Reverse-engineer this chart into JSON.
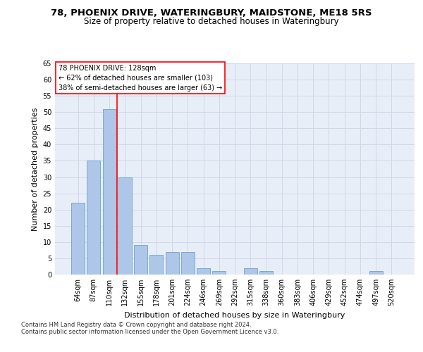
{
  "title1": "78, PHOENIX DRIVE, WATERINGBURY, MAIDSTONE, ME18 5RS",
  "title2": "Size of property relative to detached houses in Wateringbury",
  "xlabel": "Distribution of detached houses by size in Wateringbury",
  "ylabel": "Number of detached properties",
  "categories": [
    "64sqm",
    "87sqm",
    "110sqm",
    "132sqm",
    "155sqm",
    "178sqm",
    "201sqm",
    "224sqm",
    "246sqm",
    "269sqm",
    "292sqm",
    "315sqm",
    "338sqm",
    "360sqm",
    "383sqm",
    "406sqm",
    "429sqm",
    "452sqm",
    "474sqm",
    "497sqm",
    "520sqm"
  ],
  "values": [
    22,
    35,
    51,
    30,
    9,
    6,
    7,
    7,
    2,
    1,
    0,
    2,
    1,
    0,
    0,
    0,
    0,
    0,
    0,
    1,
    0
  ],
  "bar_color": "#aec6e8",
  "bar_edge_color": "#5a96c8",
  "annotation_text": "78 PHOENIX DRIVE: 128sqm\n← 62% of detached houses are smaller (103)\n38% of semi-detached houses are larger (63) →",
  "annotation_box_color": "white",
  "annotation_box_edge_color": "red",
  "vline_color": "red",
  "vline_x_index": 2.5,
  "ylim": [
    0,
    65
  ],
  "yticks": [
    0,
    5,
    10,
    15,
    20,
    25,
    30,
    35,
    40,
    45,
    50,
    55,
    60,
    65
  ],
  "grid_color": "#d0d8e8",
  "bg_color": "#e8eef8",
  "footer1": "Contains HM Land Registry data © Crown copyright and database right 2024.",
  "footer2": "Contains public sector information licensed under the Open Government Licence v3.0.",
  "title1_fontsize": 9.5,
  "title2_fontsize": 8.5,
  "xlabel_fontsize": 8,
  "ylabel_fontsize": 8,
  "tick_fontsize": 7,
  "annotation_fontsize": 7,
  "footer_fontsize": 6
}
